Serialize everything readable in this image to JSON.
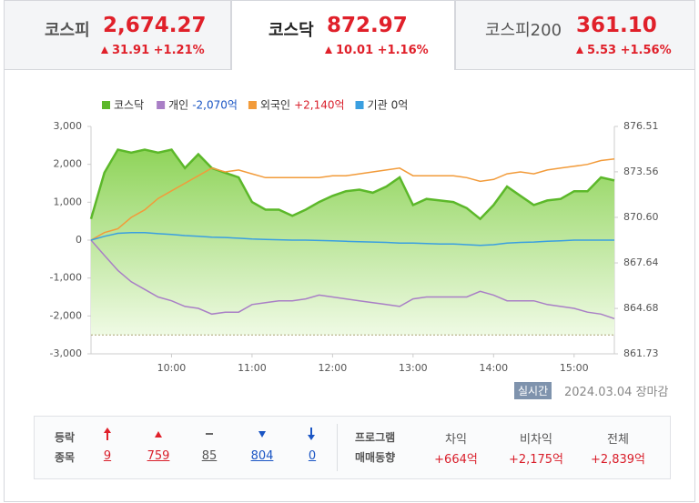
{
  "tabs": [
    {
      "name": "코스피",
      "value": "2,674.27",
      "change": "31.91",
      "rate": "+1.21%"
    },
    {
      "name": "코스닥",
      "value": "872.97",
      "change": "10.01",
      "rate": "+1.16%"
    },
    {
      "name": "코스피200",
      "value": "361.10",
      "change": "5.53",
      "rate": "+1.56%"
    }
  ],
  "chart_data": {
    "type": "line",
    "x": [
      "09:00",
      "09:10",
      "09:20",
      "09:30",
      "09:40",
      "09:50",
      "10:00",
      "10:10",
      "10:20",
      "10:30",
      "10:40",
      "10:50",
      "11:00",
      "11:10",
      "11:20",
      "11:30",
      "11:40",
      "11:50",
      "12:00",
      "12:10",
      "12:20",
      "12:30",
      "12:40",
      "12:50",
      "13:00",
      "13:10",
      "13:20",
      "13:30",
      "13:40",
      "13:50",
      "14:00",
      "14:10",
      "14:20",
      "14:30",
      "14:40",
      "14:50",
      "15:00",
      "15:10",
      "15:20",
      "15:30"
    ],
    "xlim": [
      "09:00",
      "15:30"
    ],
    "xticks": [
      "10:00",
      "11:00",
      "12:00",
      "13:00",
      "14:00",
      "15:00"
    ],
    "ylim": [
      -3000,
      3000
    ],
    "yticks": [
      {
        "value": -3000,
        "label": "-3,000"
      },
      {
        "value": -2000,
        "label": "-2,000"
      },
      {
        "value": -1000,
        "label": "-1,000"
      },
      0,
      {
        "value": 1000,
        "label": "1,000"
      },
      {
        "value": 2000,
        "label": "2,000"
      },
      {
        "value": 3000,
        "label": "3,000"
      }
    ],
    "y2lim": [
      861.73,
      876.51
    ],
    "y2ticks": [
      861.73,
      864.68,
      867.64,
      {
        "value": 870.6,
        "label": "870.60"
      },
      873.56,
      876.51
    ],
    "reference_line": {
      "value": 862.96,
      "axis": "y2"
    },
    "series": [
      {
        "name": "코스닥",
        "color": "#5cb82a",
        "axis": "y2",
        "area": true,
        "values": [
          870.5,
          873.5,
          875.0,
          874.8,
          875.0,
          874.8,
          875.0,
          873.8,
          874.7,
          873.8,
          873.5,
          873.2,
          871.6,
          871.1,
          871.1,
          870.7,
          871.1,
          871.6,
          872.0,
          872.3,
          872.4,
          872.2,
          872.6,
          873.2,
          871.4,
          871.8,
          871.7,
          871.6,
          871.2,
          870.5,
          871.4,
          872.6,
          872.0,
          871.4,
          871.7,
          871.8,
          872.3,
          872.3,
          873.2,
          873.0
        ]
      },
      {
        "name": "개인",
        "legend_value": "-2,070억",
        "legend_value_color": "#1a55c4",
        "color": "#a97fc6",
        "values": [
          0,
          -400,
          -800,
          -1100,
          -1300,
          -1500,
          -1600,
          -1750,
          -1800,
          -1950,
          -1900,
          -1900,
          -1700,
          -1650,
          -1600,
          -1600,
          -1550,
          -1450,
          -1500,
          -1550,
          -1600,
          -1650,
          -1700,
          -1750,
          -1550,
          -1500,
          -1500,
          -1500,
          -1500,
          -1350,
          -1450,
          -1600,
          -1600,
          -1600,
          -1700,
          -1750,
          -1800,
          -1900,
          -1950,
          -2070
        ]
      },
      {
        "name": "외국인",
        "legend_value": "+2,140억",
        "legend_value_color": "#d91e2a",
        "color": "#f29b3a",
        "values": [
          0,
          200,
          300,
          600,
          800,
          1100,
          1300,
          1500,
          1700,
          1900,
          1800,
          1850,
          1750,
          1650,
          1650,
          1650,
          1650,
          1650,
          1700,
          1700,
          1750,
          1800,
          1850,
          1900,
          1700,
          1700,
          1700,
          1700,
          1650,
          1550,
          1600,
          1750,
          1800,
          1750,
          1850,
          1900,
          1950,
          2000,
          2100,
          2140
        ]
      },
      {
        "name": "기관",
        "legend_value": "0억",
        "legend_value_color": "#333333",
        "color": "#3a9fe0",
        "values": [
          0,
          100,
          180,
          200,
          200,
          170,
          150,
          120,
          100,
          80,
          70,
          50,
          30,
          20,
          10,
          0,
          0,
          -10,
          -20,
          -30,
          -40,
          -50,
          -60,
          -80,
          -80,
          -90,
          -100,
          -100,
          -120,
          -140,
          -120,
          -80,
          -60,
          -50,
          -30,
          -20,
          0,
          0,
          0,
          0
        ]
      }
    ]
  },
  "status": {
    "badge": "실시간",
    "date": "2024.03.04",
    "state": "장마감"
  },
  "breadth": {
    "label_top": "등락",
    "label_bottom": "종목",
    "counts": [
      9,
      759,
      85,
      804,
      0
    ]
  },
  "program": {
    "label_top": "프로그램",
    "label_bottom": "매매동향",
    "items": [
      {
        "name": "차익",
        "value": "+664억"
      },
      {
        "name": "비차익",
        "value": "+2,175억"
      },
      {
        "name": "전체",
        "value": "+2,839억"
      }
    ]
  }
}
